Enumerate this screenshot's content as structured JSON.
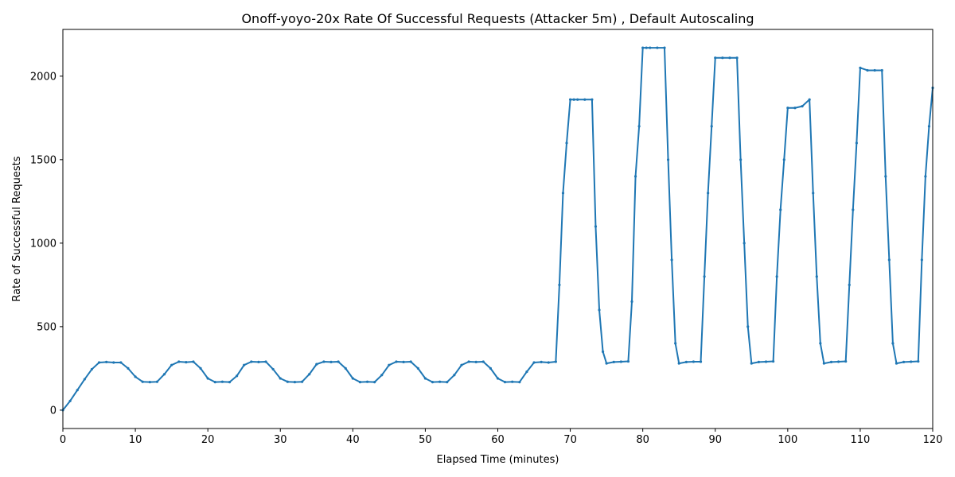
{
  "chart_data": {
    "type": "line",
    "title": "Onoff-yoyo-20x Rate Of Successful Requests (Attacker 5m) , Default Autoscaling",
    "xlabel": "Elapsed Time (minutes)",
    "ylabel": "Rate of Successful Requests",
    "xlim": [
      0,
      120
    ],
    "ylim": [
      -110,
      2280
    ],
    "xticks": [
      0,
      10,
      20,
      30,
      40,
      50,
      60,
      70,
      80,
      90,
      100,
      110,
      120
    ],
    "yticks": [
      0,
      500,
      1000,
      1500,
      2000
    ],
    "grid": false,
    "series": [
      {
        "color": "#1f77b4",
        "marker": "dot",
        "x": [
          0,
          1,
          2,
          3,
          4,
          5,
          6,
          7,
          8,
          9,
          10,
          11,
          12,
          13,
          14,
          15,
          16,
          17,
          18,
          19,
          20,
          21,
          22,
          23,
          24,
          25,
          26,
          27,
          28,
          29,
          30,
          31,
          32,
          33,
          34,
          35,
          36,
          37,
          38,
          39,
          40,
          41,
          42,
          43,
          44,
          45,
          46,
          47,
          48,
          49,
          50,
          51,
          52,
          53,
          54,
          55,
          56,
          57,
          58,
          59,
          60,
          61,
          62,
          63,
          64,
          65,
          66,
          67,
          68,
          68.5,
          69,
          69.5,
          70,
          70.5,
          71,
          72,
          73,
          73.5,
          74,
          74.5,
          75,
          76,
          77,
          78,
          78.5,
          79,
          79.5,
          80,
          80.5,
          81,
          82,
          83,
          83.5,
          84,
          84.5,
          85,
          86,
          87,
          88,
          88.5,
          89,
          89.5,
          90,
          91,
          92,
          93,
          93.5,
          94,
          94.5,
          95,
          96,
          97,
          98,
          98.5,
          99,
          99.5,
          100,
          101,
          102,
          103,
          103.5,
          104,
          104.5,
          105,
          106,
          107,
          108,
          108.5,
          109,
          109.5,
          110,
          111,
          112,
          113,
          113.5,
          114,
          114.5,
          115,
          116,
          117,
          118,
          118.5,
          119,
          119.5,
          120
        ],
        "y": [
          0,
          55,
          120,
          185,
          245,
          285,
          288,
          285,
          285,
          250,
          200,
          170,
          168,
          170,
          215,
          270,
          290,
          287,
          290,
          250,
          190,
          168,
          170,
          168,
          205,
          270,
          290,
          288,
          290,
          245,
          190,
          170,
          168,
          170,
          215,
          275,
          290,
          288,
          290,
          250,
          190,
          168,
          170,
          168,
          210,
          270,
          290,
          288,
          290,
          250,
          190,
          168,
          170,
          168,
          210,
          270,
          290,
          288,
          290,
          250,
          190,
          168,
          170,
          168,
          230,
          285,
          288,
          285,
          290,
          750,
          1300,
          1600,
          1860,
          1860,
          1860,
          1860,
          1860,
          1100,
          600,
          350,
          280,
          288,
          290,
          292,
          650,
          1400,
          1700,
          2170,
          2170,
          2170,
          2170,
          2170,
          1500,
          900,
          400,
          280,
          288,
          290,
          290,
          800,
          1300,
          1700,
          2110,
          2110,
          2110,
          2110,
          1500,
          1000,
          500,
          280,
          288,
          290,
          292,
          800,
          1200,
          1500,
          1810,
          1810,
          1820,
          1860,
          1300,
          800,
          400,
          280,
          288,
          290,
          292,
          750,
          1200,
          1600,
          2050,
          2035,
          2035,
          2035,
          1400,
          900,
          400,
          280,
          288,
          290,
          292,
          900,
          1400,
          1700,
          1930
        ]
      }
    ]
  }
}
